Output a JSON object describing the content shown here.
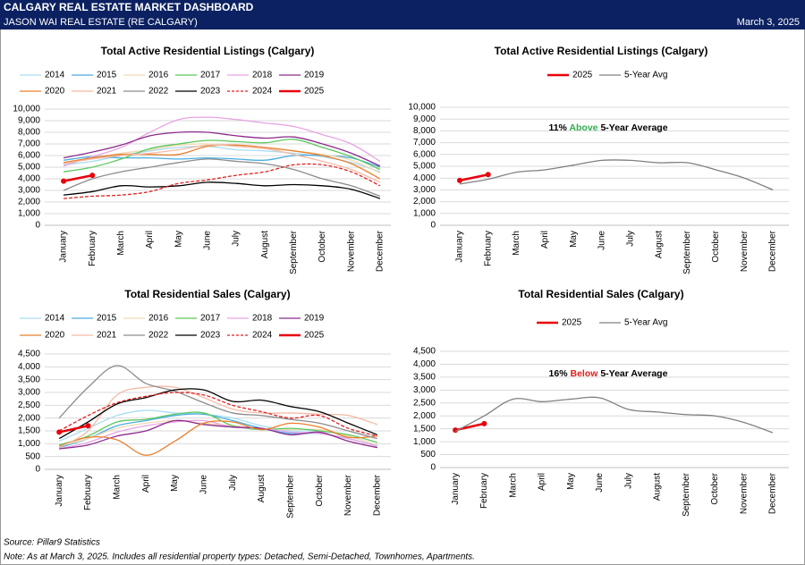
{
  "header": {
    "title": "CALGARY REAL ESTATE MARKET DASHBOARD",
    "subtitle": "JASON WAI REAL ESTATE (RE CALGARY)",
    "date": "March 3, 2025"
  },
  "footer": {
    "source": "Source: Pillar9 Statistics",
    "note": "Note: As at March 3, 2025. Includes all residential property types: Detached, Semi-Detached, Townhomes, Apartments."
  },
  "chart_data": [
    {
      "type": "line",
      "title": "Total Active Residential Listings (Calgary)",
      "grid": true,
      "categories": [
        "January",
        "February",
        "March",
        "April",
        "May",
        "June",
        "July",
        "August",
        "September",
        "October",
        "November",
        "December"
      ],
      "ylim": [
        0,
        10000
      ],
      "yticks": [
        0,
        {
          "value": 1000,
          "label": "1,000"
        },
        {
          "value": 2000,
          "label": "2,000"
        },
        {
          "value": 3000,
          "label": "3,000"
        },
        {
          "value": 4000,
          "label": "4,000"
        },
        {
          "value": 5000,
          "label": "5,000"
        },
        {
          "value": 6000,
          "label": "6,000"
        },
        {
          "value": 7000,
          "label": "7,000"
        },
        {
          "value": 8000,
          "label": "8,000"
        },
        {
          "value": 9000,
          "label": "9,000"
        },
        {
          "value": 10000,
          "label": "10,000"
        }
      ],
      "series": [
        {
          "name": "2014",
          "color": "#a9dcf2",
          "values": [
            5200,
            5500,
            6000,
            6400,
            6700,
            6800,
            6500,
            6400,
            6200,
            5900,
            5400,
            4600
          ]
        },
        {
          "name": "2015",
          "color": "#4aaee0",
          "values": [
            5600,
            5900,
            5800,
            5800,
            5700,
            5800,
            5700,
            5600,
            6000,
            6000,
            5800,
            5000
          ]
        },
        {
          "name": "2016",
          "color": "#f1d9b5",
          "values": [
            5300,
            5800,
            6200,
            6500,
            6900,
            7000,
            6800,
            6600,
            6400,
            6100,
            5600,
            4500
          ]
        },
        {
          "name": "2017",
          "color": "#5cc85c",
          "values": [
            4600,
            5000,
            5700,
            6600,
            7000,
            7300,
            7200,
            7100,
            7400,
            6700,
            5900,
            4800
          ]
        },
        {
          "name": "2018",
          "color": "#e7a3e3",
          "values": [
            5100,
            5900,
            6700,
            8000,
            9100,
            9300,
            9100,
            8800,
            8500,
            7800,
            7000,
            5500
          ]
        },
        {
          "name": "2019",
          "color": "#8b2a8b",
          "values": [
            5800,
            6300,
            6900,
            7700,
            8000,
            8000,
            7700,
            7500,
            7600,
            7000,
            6200,
            5100
          ]
        },
        {
          "name": "2020",
          "color": "#e8802e",
          "values": [
            5400,
            5800,
            6100,
            6100,
            6100,
            6800,
            6900,
            6700,
            6400,
            6000,
            5300,
            4000
          ]
        },
        {
          "name": "2021",
          "color": "#f4bba5",
          "values": [
            5300,
            5700,
            6000,
            6200,
            6500,
            6900,
            6800,
            6600,
            6100,
            5500,
            4800,
            3700
          ]
        },
        {
          "name": "2022",
          "color": "#8c8c8c",
          "values": [
            3000,
            4000,
            4600,
            5000,
            5400,
            5700,
            5500,
            5300,
            4800,
            4000,
            3400,
            2500
          ]
        },
        {
          "name": "2023",
          "color": "#000000",
          "values": [
            2600,
            2900,
            3400,
            3300,
            3400,
            3700,
            3600,
            3400,
            3500,
            3400,
            3100,
            2300
          ]
        },
        {
          "name": "2024",
          "color": "#e02020",
          "dashed": true,
          "values": [
            2300,
            2500,
            2600,
            2900,
            3600,
            3900,
            4300,
            4600,
            5200,
            5200,
            4600,
            3400
          ]
        },
        {
          "name": "2025",
          "color": "#e8000b",
          "markers": true,
          "values": [
            3800,
            4300,
            null,
            null,
            null,
            null,
            null,
            null,
            null,
            null,
            null,
            null
          ]
        }
      ]
    },
    {
      "type": "line",
      "title": "Total Active Residential Listings (Calgary)",
      "grid": true,
      "annotation": {
        "value": "11%",
        "direction": "Above",
        "direction_color": "#2fae4f",
        "text": "5-Year Average"
      },
      "categories": [
        "January",
        "February",
        "March",
        "April",
        "May",
        "June",
        "July",
        "August",
        "September",
        "October",
        "November",
        "December"
      ],
      "ylim": [
        0,
        10000
      ],
      "yticks": [
        0,
        {
          "value": 1000,
          "label": "1,000"
        },
        {
          "value": 2000,
          "label": "2,000"
        },
        {
          "value": 3000,
          "label": "3,000"
        },
        {
          "value": 4000,
          "label": "4,000"
        },
        {
          "value": 5000,
          "label": "5,000"
        },
        {
          "value": 6000,
          "label": "6,000"
        },
        {
          "value": 7000,
          "label": "7,000"
        },
        {
          "value": 8000,
          "label": "8,000"
        },
        {
          "value": 9000,
          "label": "9,000"
        },
        {
          "value": 10000,
          "label": "10,000"
        }
      ],
      "series": [
        {
          "name": "2025",
          "color": "#e8000b",
          "markers": true,
          "values": [
            3800,
            4300,
            null,
            null,
            null,
            null,
            null,
            null,
            null,
            null,
            null,
            null
          ]
        },
        {
          "name": "5-Year Avg",
          "color": "#808080",
          "values": [
            3500,
            3900,
            4500,
            4700,
            5100,
            5500,
            5500,
            5300,
            5300,
            4700,
            4000,
            3000
          ]
        }
      ]
    },
    {
      "type": "line",
      "title": "Total Residential Sales (Calgary)",
      "grid": true,
      "categories": [
        "January",
        "February",
        "March",
        "April",
        "May",
        "June",
        "July",
        "August",
        "September",
        "October",
        "November",
        "December"
      ],
      "ylim": [
        0,
        4500
      ],
      "yticks": [
        0,
        500,
        {
          "value": 1000,
          "label": "1,000"
        },
        {
          "value": 1500,
          "label": "1,500"
        },
        {
          "value": 2000,
          "label": "2,000"
        },
        {
          "value": 2500,
          "label": "2,500"
        },
        {
          "value": 3000,
          "label": "3,000"
        },
        {
          "value": 3500,
          "label": "3,500"
        },
        {
          "value": 4000,
          "label": "4,000"
        },
        {
          "value": 4500,
          "label": "4,500"
        }
      ],
      "series": [
        {
          "name": "2014",
          "color": "#a9dcf2",
          "values": [
            1100,
            1600,
            2100,
            2300,
            2200,
            2150,
            2000,
            1700,
            1500,
            1500,
            1300,
            950
          ]
        },
        {
          "name": "2015",
          "color": "#4aaee0",
          "values": [
            850,
            1200,
            1700,
            1900,
            2100,
            2150,
            1900,
            1600,
            1400,
            1400,
            1200,
            900
          ]
        },
        {
          "name": "2016",
          "color": "#f1d9b5",
          "values": [
            900,
            1200,
            1600,
            1800,
            1900,
            1800,
            1700,
            1600,
            1550,
            1550,
            1300,
            950
          ]
        },
        {
          "name": "2017",
          "color": "#5cc85c",
          "values": [
            950,
            1300,
            1850,
            1950,
            2150,
            2200,
            1700,
            1550,
            1600,
            1500,
            1350,
            1050
          ]
        },
        {
          "name": "2018",
          "color": "#e7a3e3",
          "values": [
            800,
            1050,
            1450,
            1700,
            1850,
            1900,
            1650,
            1600,
            1450,
            1400,
            1200,
            900
          ]
        },
        {
          "name": "2019",
          "color": "#8b2a8b",
          "values": [
            800,
            950,
            1300,
            1500,
            1900,
            1750,
            1650,
            1600,
            1350,
            1450,
            1100,
            850
          ]
        },
        {
          "name": "2020",
          "color": "#e8802e",
          "values": [
            900,
            1250,
            1150,
            550,
            1100,
            1800,
            1850,
            1550,
            1800,
            1650,
            1250,
            1300
          ]
        },
        {
          "name": "2021",
          "color": "#f4bba5",
          "values": [
            850,
            1500,
            2900,
            3200,
            3200,
            2800,
            2350,
            2200,
            2200,
            2150,
            2100,
            1750
          ]
        },
        {
          "name": "2022",
          "color": "#8c8c8c",
          "values": [
            2000,
            3200,
            4050,
            3350,
            3050,
            2600,
            2200,
            2100,
            1950,
            1800,
            1500,
            1200
          ]
        },
        {
          "name": "2023",
          "color": "#000000",
          "values": [
            1200,
            1850,
            2550,
            2800,
            3100,
            3100,
            2650,
            2700,
            2450,
            2250,
            1800,
            1350
          ]
        },
        {
          "name": "2024",
          "color": "#e02020",
          "dashed": true,
          "values": [
            1500,
            2100,
            2600,
            2850,
            3000,
            2900,
            2500,
            2250,
            2000,
            2100,
            1600,
            1300
          ]
        },
        {
          "name": "2025",
          "color": "#e8000b",
          "markers": true,
          "values": [
            1450,
            1700,
            null,
            null,
            null,
            null,
            null,
            null,
            null,
            null,
            null,
            null
          ]
        }
      ]
    },
    {
      "type": "line",
      "title": "Total Residential Sales (Calgary)",
      "grid": true,
      "annotation": {
        "value": "16%",
        "direction": "Below",
        "direction_color": "#e0201b",
        "text": "5-Year Average"
      },
      "categories": [
        "January",
        "February",
        "March",
        "April",
        "May",
        "June",
        "July",
        "August",
        "September",
        "October",
        "November",
        "December"
      ],
      "ylim": [
        0,
        4500
      ],
      "yticks": [
        0,
        500,
        {
          "value": 1000,
          "label": "1,000"
        },
        {
          "value": 1500,
          "label": "1,500"
        },
        {
          "value": 2000,
          "label": "2,000"
        },
        {
          "value": 2500,
          "label": "2,500"
        },
        {
          "value": 3000,
          "label": "3,000"
        },
        {
          "value": 3500,
          "label": "3,500"
        },
        {
          "value": 4000,
          "label": "4,000"
        },
        {
          "value": 4500,
          "label": "4,500"
        }
      ],
      "series": [
        {
          "name": "2025",
          "color": "#e8000b",
          "markers": true,
          "values": [
            1450,
            1700,
            null,
            null,
            null,
            null,
            null,
            null,
            null,
            null,
            null,
            null
          ]
        },
        {
          "name": "5-Year Avg",
          "color": "#808080",
          "values": [
            1400,
            2000,
            2650,
            2550,
            2650,
            2700,
            2250,
            2150,
            2050,
            2000,
            1750,
            1350
          ]
        }
      ]
    }
  ]
}
